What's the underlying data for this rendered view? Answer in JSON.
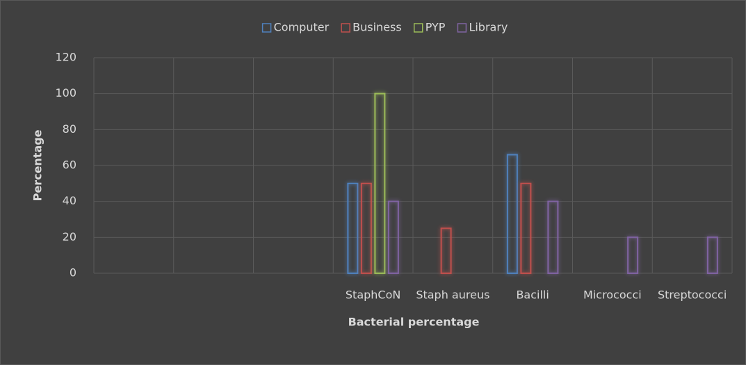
{
  "chart_data": {
    "type": "bar",
    "categories": [
      null,
      null,
      null,
      "StaphCoN",
      "Staph aureus",
      "Bacilli",
      "Micrococci",
      "Streptococci"
    ],
    "series": [
      {
        "name": "Computer",
        "color": "#4f81bd",
        "values": [
          null,
          null,
          null,
          50,
          null,
          66,
          null,
          null
        ]
      },
      {
        "name": "Business",
        "color": "#c0504d",
        "values": [
          null,
          null,
          null,
          50,
          25,
          50,
          null,
          null
        ]
      },
      {
        "name": "PYP",
        "color": "#9bbb59",
        "values": [
          null,
          null,
          null,
          100,
          null,
          null,
          null,
          null
        ]
      },
      {
        "name": "Library",
        "color": "#8064a2",
        "values": [
          null,
          null,
          null,
          40,
          null,
          40,
          20,
          20
        ]
      }
    ],
    "ylabel": "Percentage",
    "xlabel": "Bacterial percentage",
    "ylim": [
      0,
      120
    ],
    "yticks": [
      0,
      20,
      40,
      60,
      80,
      100,
      120
    ],
    "grid": true,
    "legend": "top"
  }
}
